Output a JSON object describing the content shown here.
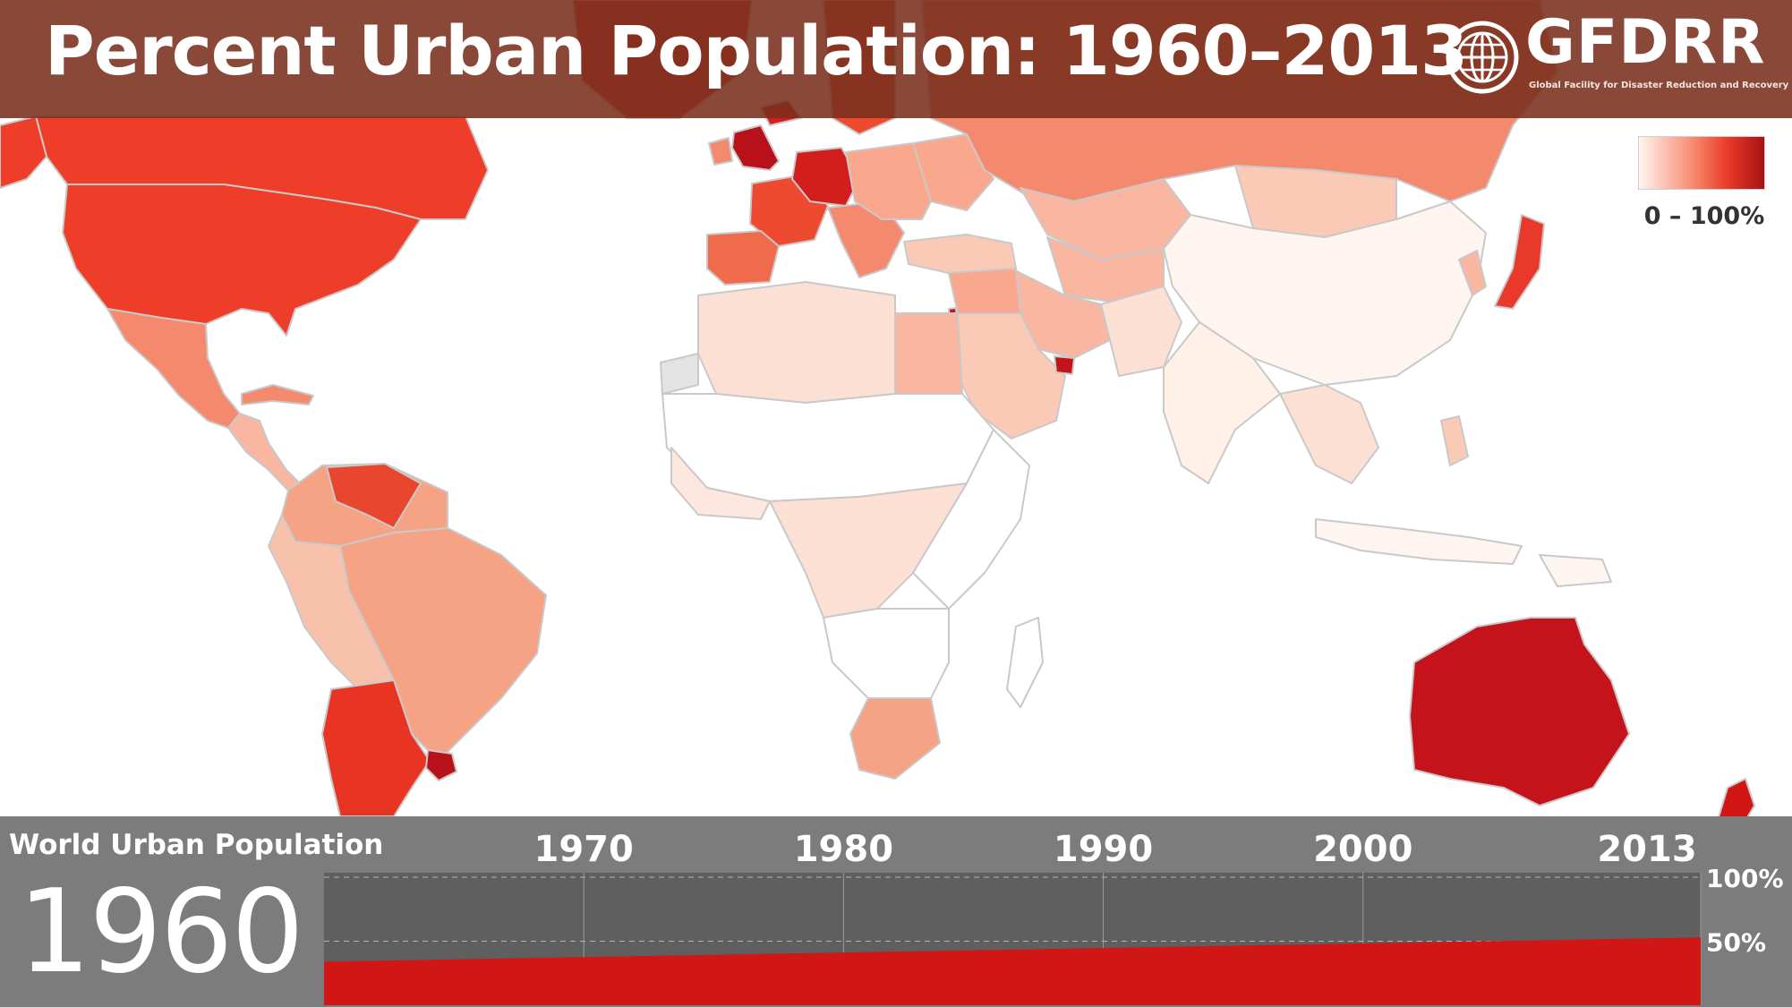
{
  "header": {
    "title": "Percent Urban Population: 1960–2013"
  },
  "logo": {
    "name": "GFDRR",
    "subtitle": "Global Facility for Disaster Reduction and Recovery",
    "icon": "globe-icon"
  },
  "legend": {
    "label": "0 – 100%",
    "colors": [
      "#fff5f0",
      "#f7866a",
      "#ea3c2a",
      "#a81014"
    ]
  },
  "map": {
    "year": 1960,
    "no_data_color": "#e3e3e3",
    "border_color": "#c9c9c9"
  },
  "timeline": {
    "title": "World Urban Population",
    "current_year": "1960",
    "fill_color": "#d11616",
    "track_color": "#5f5f5f",
    "year_ticks": [
      "1970",
      "1980",
      "1990",
      "2000",
      "2013"
    ],
    "pct_ticks": [
      "100%",
      "50%"
    ]
  },
  "chart_data": {
    "type": "area",
    "title": "World Urban Population",
    "x": [
      1960,
      2013
    ],
    "y": [
      34,
      53
    ],
    "xlim": [
      1960,
      2013
    ],
    "ylim": [
      0,
      100
    ],
    "xticks": [
      "1970",
      "1980",
      "1990",
      "2000",
      "2013"
    ],
    "yticks": [
      "100%",
      "50%"
    ],
    "grid": true
  }
}
